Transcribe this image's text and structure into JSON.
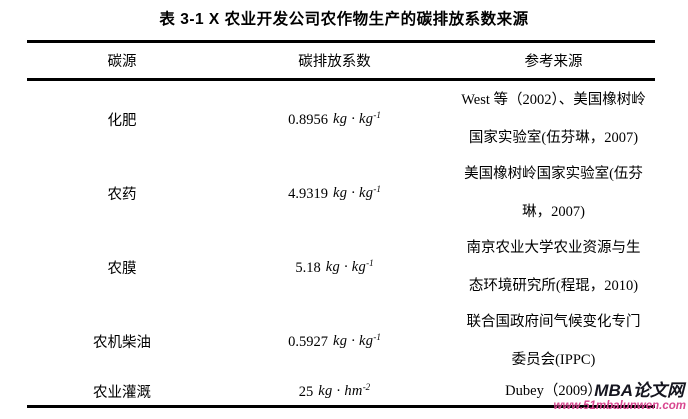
{
  "table": {
    "title": "表 3-1 X 农业开发公司农作物生产的碳排放系数来源",
    "columns": [
      "碳源",
      "碳排放系数",
      "参考来源"
    ],
    "rows": [
      {
        "source": "化肥",
        "coef": {
          "value": "0.8956",
          "unit": "kg · kg",
          "exp": "-1"
        },
        "reference": [
          "West 等（2002）、美国橡树岭",
          "国家实验室(伍芬琳，2007)"
        ]
      },
      {
        "source": "农药",
        "coef": {
          "value": "4.9319",
          "unit": "kg · kg",
          "exp": "-1"
        },
        "reference": [
          "美国橡树岭国家实验室(伍芬",
          "琳，2007)"
        ]
      },
      {
        "source": "农膜",
        "coef": {
          "value": "5.18",
          "unit": "kg · kg",
          "exp": "-1"
        },
        "reference": [
          "南京农业大学农业资源与生",
          "态环境研究所(程琨，2010)"
        ]
      },
      {
        "source": "农机柴油",
        "coef": {
          "value": "0.5927",
          "unit": "kg · kg",
          "exp": "-1"
        },
        "reference": [
          "联合国政府间气候变化专门",
          "委员会(IPPC)"
        ]
      },
      {
        "source": "农业灌溉",
        "coef": {
          "value": "25",
          "unit": "kg · hm",
          "exp": "-2"
        },
        "reference": [
          "Dubey（2009）"
        ]
      }
    ]
  },
  "watermark": {
    "brand": "MBA论文网",
    "url": "www.51mbalunwen.com",
    "brand_color": "#15151f",
    "url_color": "#d8468f"
  }
}
